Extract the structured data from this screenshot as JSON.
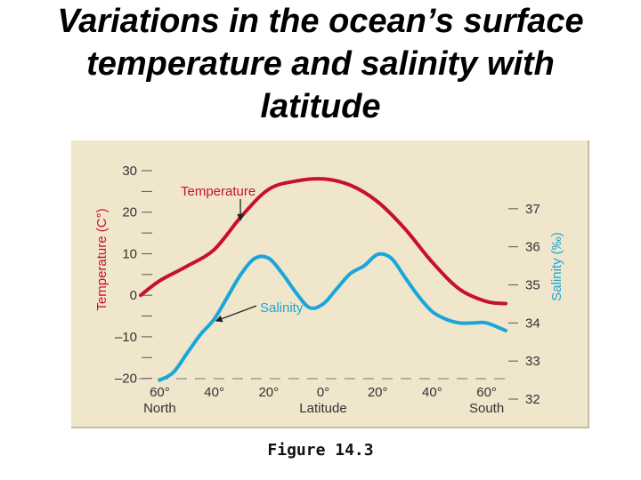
{
  "slide": {
    "title_lines": [
      "Variations in the ocean’s surface",
      "temperature and salinity with",
      "latitude"
    ],
    "caption": "Figure 14.3"
  },
  "colors": {
    "temperature": "#c8102e",
    "salinity": "#1aa6d8",
    "panel_background": "#efe6cc",
    "axis_text": "#333333"
  },
  "chart_data": {
    "type": "line",
    "title": "",
    "xlabel": "Latitude",
    "x_ticks": [
      {
        "label": "60°",
        "sub": "North",
        "lat": 60
      },
      {
        "label": "40°",
        "sub": "",
        "lat": 40
      },
      {
        "label": "20°",
        "sub": "",
        "lat": 20
      },
      {
        "label": "0°",
        "sub": "Latitude",
        "lat": 0
      },
      {
        "label": "20°",
        "sub": "",
        "lat": -20
      },
      {
        "label": "40°",
        "sub": "",
        "lat": -40
      },
      {
        "label": "60°",
        "sub": "South",
        "lat": -60
      }
    ],
    "xlim": [
      67,
      -67
    ],
    "left_axis": {
      "label": "Temperature (C°)",
      "ylim": [
        -25,
        30
      ],
      "ticks": [
        "30",
        "20",
        "10",
        "0",
        "–10",
        "–20"
      ],
      "tick_values": [
        30,
        20,
        10,
        0,
        -10,
        -20
      ]
    },
    "right_axis": {
      "label": "Salinity (‰)",
      "ylim": [
        32,
        38
      ],
      "ticks": [
        "37",
        "36",
        "35",
        "34",
        "33",
        "32"
      ],
      "tick_values": [
        37,
        36,
        35,
        34,
        33,
        32
      ]
    },
    "series": [
      {
        "name": "Temperature",
        "axis": "left",
        "x": [
          67,
          60,
          50,
          40,
          30,
          20,
          10,
          0,
          -10,
          -20,
          -30,
          -40,
          -50,
          -60,
          -67
        ],
        "y": [
          0,
          3.5,
          7,
          11,
          19,
          25.5,
          27.5,
          28,
          26.5,
          22.5,
          16,
          8,
          1.5,
          -1.5,
          -2
        ]
      },
      {
        "name": "Salinity",
        "axis": "right",
        "x": [
          60,
          55,
          50,
          45,
          40,
          35,
          30,
          25,
          20,
          15,
          10,
          5,
          0,
          -5,
          -10,
          -15,
          -20,
          -25,
          -30,
          -35,
          -40,
          -45,
          -50,
          -55,
          -60,
          -67
        ],
        "y": [
          32.5,
          32.7,
          33.2,
          33.7,
          34.1,
          34.7,
          35.3,
          35.7,
          35.7,
          35.3,
          34.8,
          34.4,
          34.5,
          34.9,
          35.3,
          35.5,
          35.8,
          35.7,
          35.2,
          34.7,
          34.3,
          34.1,
          34,
          34,
          34,
          33.8
        ]
      }
    ],
    "annotations": [
      {
        "text": "Temperature",
        "series": "Temperature"
      },
      {
        "text": "Salinity",
        "series": "Salinity"
      }
    ],
    "grid": false
  }
}
